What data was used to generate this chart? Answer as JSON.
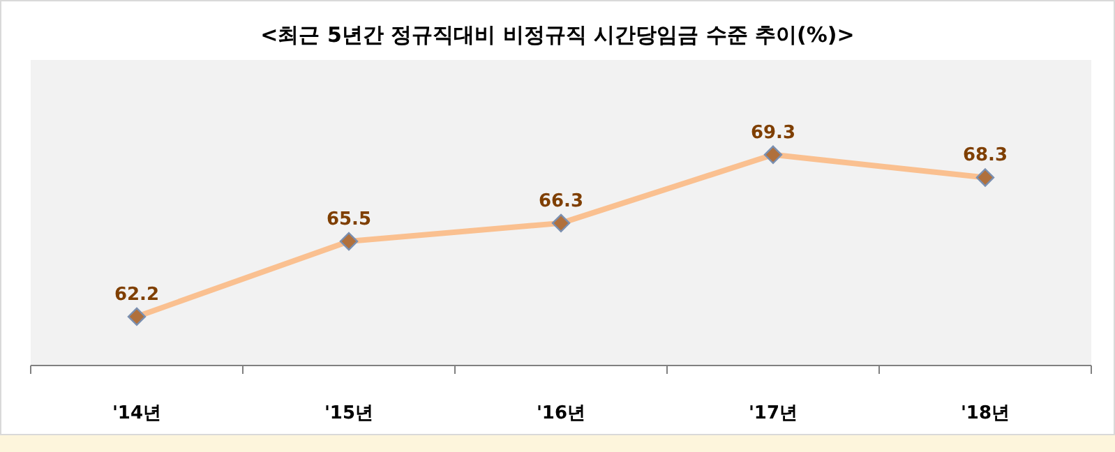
{
  "chart_data": {
    "type": "line",
    "title": "<최근 5년간 정규직대비 비정규직 시간당임금  수준 추이(%)>",
    "categories": [
      "'14년",
      "'15년",
      "'16년",
      "'17년",
      "'18년"
    ],
    "values": [
      62.2,
      65.5,
      66.3,
      69.3,
      68.3
    ],
    "color": "#fac090",
    "marker": "diamond",
    "data_labels": true
  }
}
